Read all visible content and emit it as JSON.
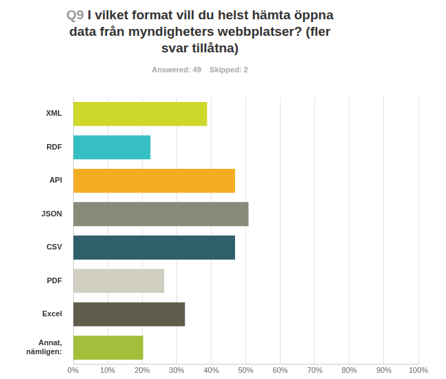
{
  "chart_data": {
    "type": "bar",
    "orientation": "horizontal",
    "title": "Q9 I vilket format vill du helst hämta öppna data från myndigheters webbplatser? (fler svar tillåtna)",
    "subtitle": "Answered: 49    Skipped: 2",
    "categories": [
      "XML",
      "RDF",
      "API",
      "JSON",
      "CSV",
      "PDF",
      "Excel",
      "Annat, nämligen:"
    ],
    "values": [
      38.8,
      22.4,
      46.9,
      50.8,
      46.9,
      26.4,
      32.4,
      20.3
    ],
    "colors": [
      "#cdd82a",
      "#36bfc2",
      "#f5ad24",
      "#8a8a7a",
      "#2e5f6b",
      "#d0cfc2",
      "#5e5d4c",
      "#a4bd3a"
    ],
    "xlim": [
      0,
      100
    ],
    "xticks": [
      {
        "value": 0,
        "label": "0%"
      },
      {
        "value": 10,
        "label": "10%"
      },
      {
        "value": 20,
        "label": "20%"
      },
      {
        "value": 30,
        "label": "30%"
      },
      {
        "value": 40,
        "label": "40%"
      },
      {
        "value": 50,
        "label": "50%"
      },
      {
        "value": 60,
        "label": "60%"
      },
      {
        "value": 70,
        "label": "70%"
      },
      {
        "value": 80,
        "label": "80%"
      },
      {
        "value": 90,
        "label": "90%"
      },
      {
        "value": 100,
        "label": "100%"
      }
    ],
    "grid": true
  }
}
